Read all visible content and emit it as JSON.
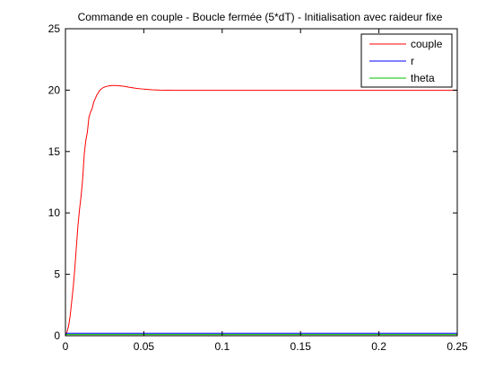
{
  "chart_data": {
    "type": "line",
    "title": "Commande en couple - Boucle fermée (5*dT) - Initialisation avec raideur fixe",
    "xlabel": "",
    "ylabel": "",
    "xlim": [
      0,
      0.25
    ],
    "ylim": [
      0,
      25
    ],
    "grid": false,
    "legend_position": "top-right",
    "x_ticks": [
      0,
      0.05,
      0.1,
      0.15,
      0.2,
      0.25
    ],
    "x_tick_labels": [
      "0",
      "0.05",
      "0.1",
      "0.15",
      "0.2",
      "0.25"
    ],
    "y_ticks": [
      0,
      5,
      10,
      15,
      20,
      25
    ],
    "y_tick_labels": [
      "0",
      "5",
      "10",
      "15",
      "20",
      "25"
    ],
    "series": [
      {
        "name": "couple",
        "color": "#ff0000",
        "x": [
          0,
          0.001,
          0.002,
          0.003,
          0.004,
          0.005,
          0.006,
          0.007,
          0.008,
          0.009,
          0.01,
          0.011,
          0.012,
          0.013,
          0.014,
          0.015,
          0.016,
          0.017,
          0.018,
          0.019,
          0.02,
          0.022,
          0.024,
          0.026,
          0.028,
          0.03,
          0.032,
          0.034,
          0.036,
          0.038,
          0.04,
          0.045,
          0.05,
          0.055,
          0.06,
          0.065,
          0.07,
          0.08,
          0.1,
          0.15,
          0.2,
          0.25
        ],
        "y": [
          0,
          0.3,
          0.8,
          1.6,
          2.8,
          4.0,
          5.5,
          7.3,
          9.0,
          10.3,
          11.4,
          12.8,
          14.8,
          15.9,
          16.6,
          17.8,
          18.2,
          18.5,
          19.0,
          19.3,
          19.6,
          20.0,
          20.2,
          20.3,
          20.35,
          20.38,
          20.38,
          20.36,
          20.33,
          20.3,
          20.25,
          20.15,
          20.08,
          20.03,
          20.0,
          19.99,
          19.98,
          19.98,
          19.98,
          19.98,
          19.98,
          19.98
        ]
      },
      {
        "name": "r",
        "color": "#0000ff",
        "x": [
          0,
          0.25
        ],
        "y": [
          0.2,
          0.2
        ]
      },
      {
        "name": "theta",
        "color": "#00c000",
        "x": [
          0,
          0.25
        ],
        "y": [
          0.1,
          0.1
        ]
      }
    ]
  }
}
